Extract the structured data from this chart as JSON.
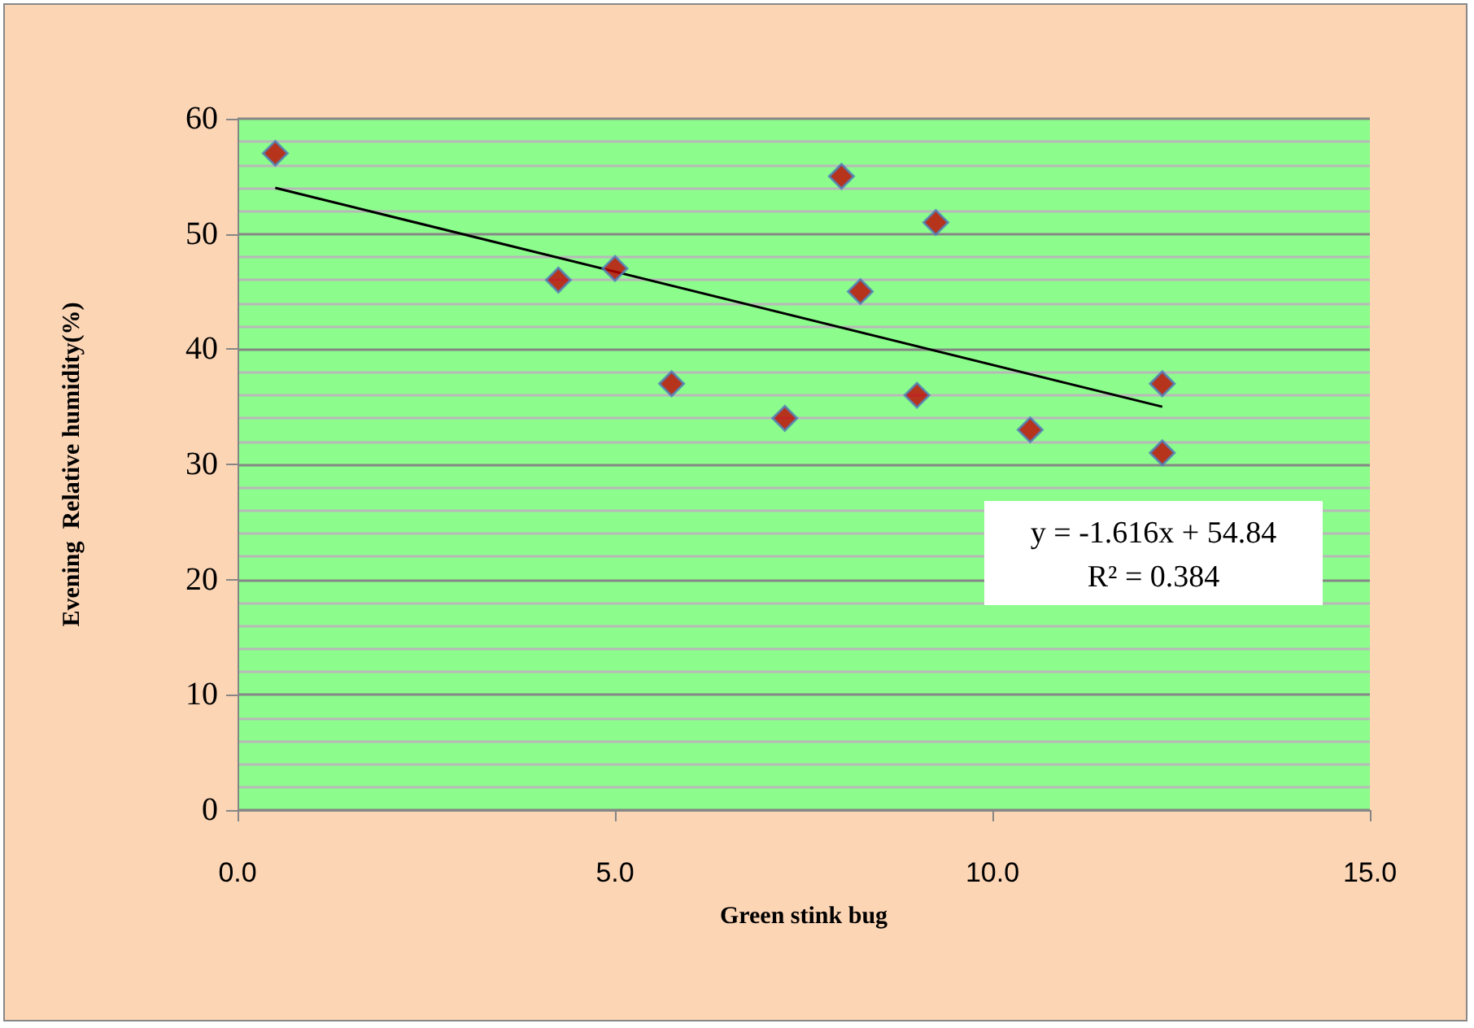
{
  "chart_data": {
    "type": "scatter",
    "xlabel": "Green stink bug",
    "ylabel": "Evening  Relative humidity(%)",
    "x": [
      0.5,
      4.25,
      5.0,
      5.75,
      7.25,
      8.0,
      8.25,
      9.0,
      9.25,
      10.5,
      12.25,
      12.25
    ],
    "series": [
      {
        "color": "#c00000",
        "values": [
          57,
          46,
          47,
          37,
          34,
          55,
          45,
          36,
          51,
          33,
          37,
          31
        ]
      },
      {
        "type": "line",
        "color": "#000000",
        "x": [
          0.5,
          12.25
        ],
        "values": [
          54.0,
          35.0
        ],
        "marker": "none"
      }
    ],
    "xlim": [
      0,
      15
    ],
    "xticks": [
      {
        "value": 0,
        "label": "0.0"
      },
      {
        "value": 5,
        "label": "5.0"
      },
      {
        "value": 10,
        "label": "10.0"
      },
      {
        "value": 15,
        "label": "15.0"
      }
    ],
    "ylim": [
      0,
      60
    ],
    "yticks": [
      0,
      10,
      20,
      30,
      40,
      50,
      60
    ],
    "grid": "y",
    "marker": "diamond",
    "annotations": [
      "y = -1.616x + 54.84",
      "R² = 0.384"
    ]
  }
}
